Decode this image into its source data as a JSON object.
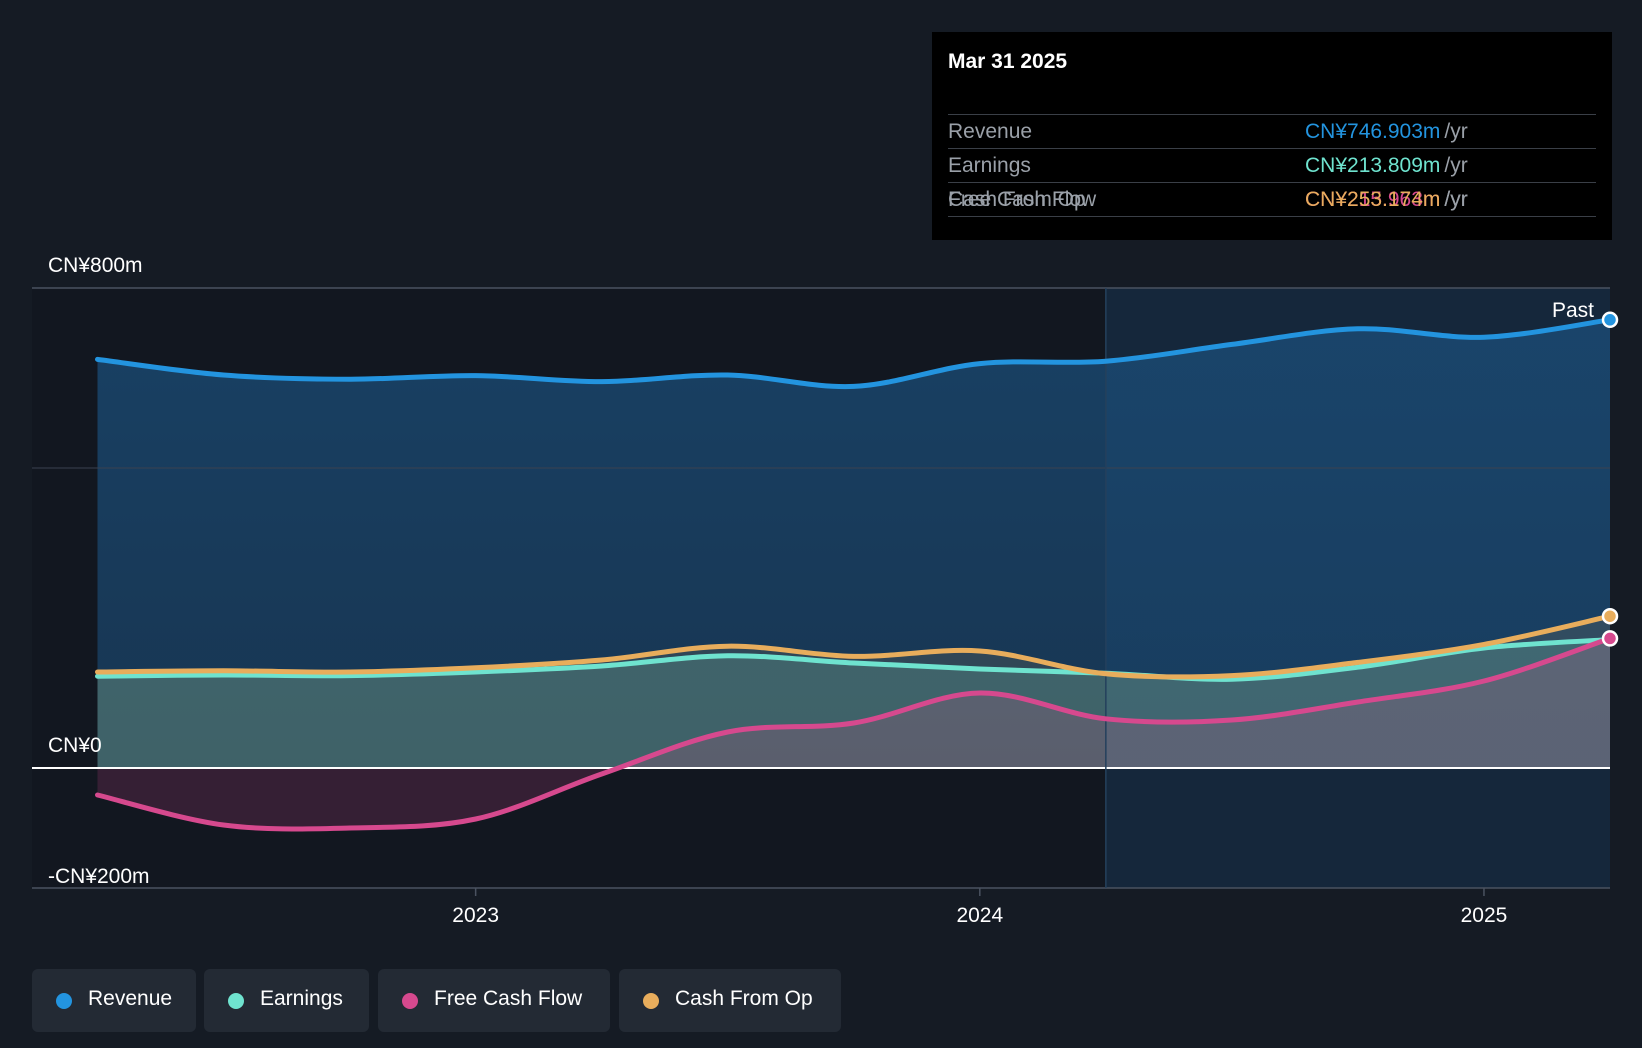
{
  "colors": {
    "background": "#151b24",
    "revenue": "#2394df",
    "earnings": "#6fe3cf",
    "free_cash_flow": "#d6498e",
    "cash_from_op": "#e8ad5c"
  },
  "tooltip": {
    "date": "Mar 31 2025",
    "rows": [
      {
        "label": "Revenue",
        "value": "CN¥746.903m",
        "unit": "/yr"
      },
      {
        "label": "Earnings",
        "value": "CN¥213.809m",
        "unit": "/yr"
      },
      {
        "label": "Free Cash Flow",
        "value": "CN¥215.963m",
        "unit": "/yr"
      },
      {
        "label": "Cash From Op",
        "value": "CN¥253.174m",
        "unit": "/yr"
      }
    ]
  },
  "legend": [
    "Revenue",
    "Earnings",
    "Free Cash Flow",
    "Cash From Op"
  ],
  "chart_data": {
    "type": "area",
    "x_unit": "year",
    "y_unit": "CN¥ millions",
    "ylim": [
      -200,
      800
    ],
    "y_tick_labels": [
      "CN¥800m",
      "CN¥0",
      "-CN¥200m"
    ],
    "x_tick_labels": [
      "2023",
      "2024",
      "2025"
    ],
    "x_range": [
      2022.12,
      2025.25
    ],
    "past_label": "Past",
    "grid": true,
    "legend_position": "bottom-left",
    "x": [
      2022.25,
      2022.5,
      2022.75,
      2023.0,
      2023.25,
      2023.5,
      2023.75,
      2024.0,
      2024.25,
      2024.5,
      2024.75,
      2025.0,
      2025.25
    ],
    "series": [
      {
        "name": "Revenue",
        "values": [
          681,
          655,
          648,
          654,
          644,
          655,
          636,
          674,
          678,
          706,
          732,
          718,
          747
        ]
      },
      {
        "name": "Earnings",
        "values": [
          153,
          155,
          154,
          160,
          170,
          187,
          175,
          165,
          158,
          148,
          168,
          200,
          214
        ]
      },
      {
        "name": "Free Cash Flow",
        "values": [
          -45,
          -95,
          -100,
          -85,
          -10,
          60,
          75,
          125,
          82,
          80,
          110,
          145,
          216
        ]
      },
      {
        "name": "Cash From Op",
        "values": [
          160,
          162,
          160,
          167,
          180,
          203,
          186,
          195,
          157,
          154,
          176,
          206,
          253
        ]
      }
    ]
  }
}
